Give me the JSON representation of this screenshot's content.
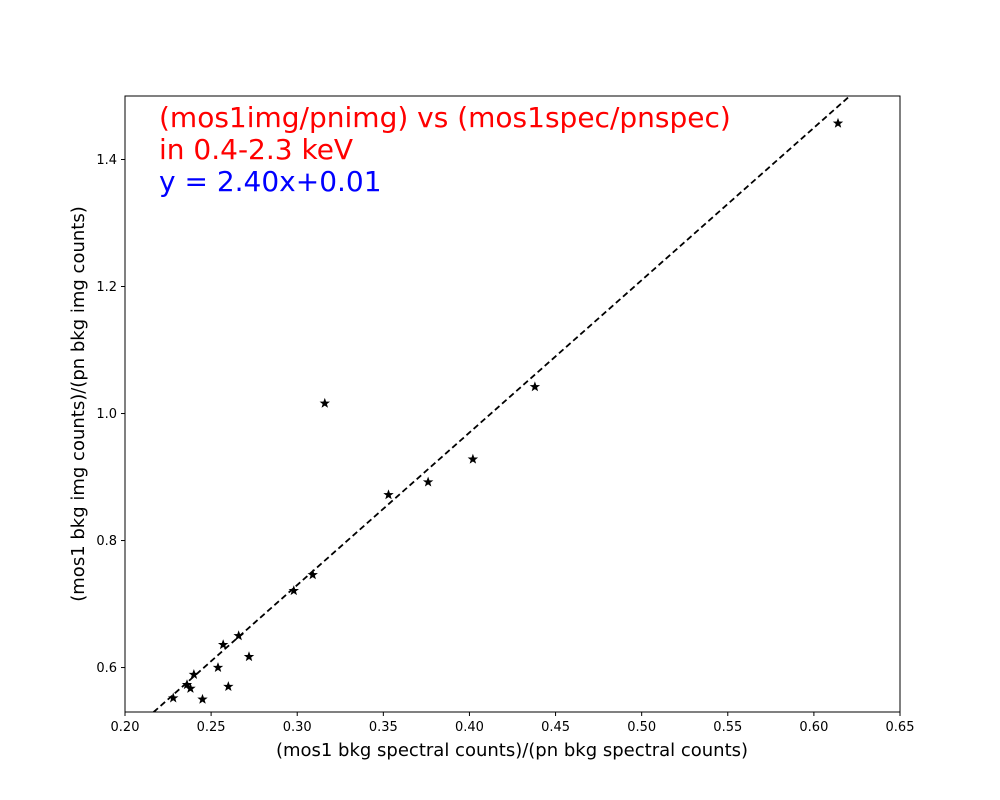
{
  "chart_data": {
    "type": "scatter",
    "xlabel": "(mos1 bkg spectral counts)/(pn bkg spectral counts)",
    "ylabel": "(mos1 bkg img counts)/(pn bkg img counts)",
    "xlim": [
      0.2,
      0.65
    ],
    "ylim": [
      0.53,
      1.5
    ],
    "x_ticks": [
      0.2,
      0.25,
      0.3,
      0.35,
      0.4,
      0.45,
      0.5,
      0.55,
      0.6,
      0.65
    ],
    "x_tick_labels": [
      "0.20",
      "0.25",
      "0.30",
      "0.35",
      "0.40",
      "0.45",
      "0.50",
      "0.55",
      "0.60",
      "0.65"
    ],
    "y_ticks": [
      0.6,
      0.8,
      1.0,
      1.2,
      1.4
    ],
    "y_tick_labels": [
      "0.6",
      "0.8",
      "1.0",
      "1.2",
      "1.4"
    ],
    "grid": false,
    "annotations": [
      {
        "text": "(mos1img/pnimg) vs (mos1spec/pnspec)",
        "color": "#ff0000"
      },
      {
        "text": "in 0.4-2.3 keV",
        "color": "#ff0000"
      },
      {
        "text": "y = 2.40x+0.01",
        "color": "#0000ff"
      }
    ],
    "fit_line": {
      "slope": 2.4,
      "intercept": 0.01,
      "style": "dashed",
      "color": "#000000"
    },
    "marker": "star",
    "marker_color": "#000000",
    "points": [
      {
        "x": 0.228,
        "y": 0.552
      },
      {
        "x": 0.236,
        "y": 0.573
      },
      {
        "x": 0.238,
        "y": 0.567
      },
      {
        "x": 0.24,
        "y": 0.589
      },
      {
        "x": 0.245,
        "y": 0.55
      },
      {
        "x": 0.254,
        "y": 0.6
      },
      {
        "x": 0.257,
        "y": 0.636
      },
      {
        "x": 0.26,
        "y": 0.57
      },
      {
        "x": 0.266,
        "y": 0.65
      },
      {
        "x": 0.272,
        "y": 0.617
      },
      {
        "x": 0.298,
        "y": 0.721
      },
      {
        "x": 0.309,
        "y": 0.746
      },
      {
        "x": 0.316,
        "y": 1.016
      },
      {
        "x": 0.353,
        "y": 0.872
      },
      {
        "x": 0.376,
        "y": 0.892
      },
      {
        "x": 0.402,
        "y": 0.928
      },
      {
        "x": 0.438,
        "y": 1.042
      },
      {
        "x": 0.614,
        "y": 1.457
      }
    ]
  }
}
